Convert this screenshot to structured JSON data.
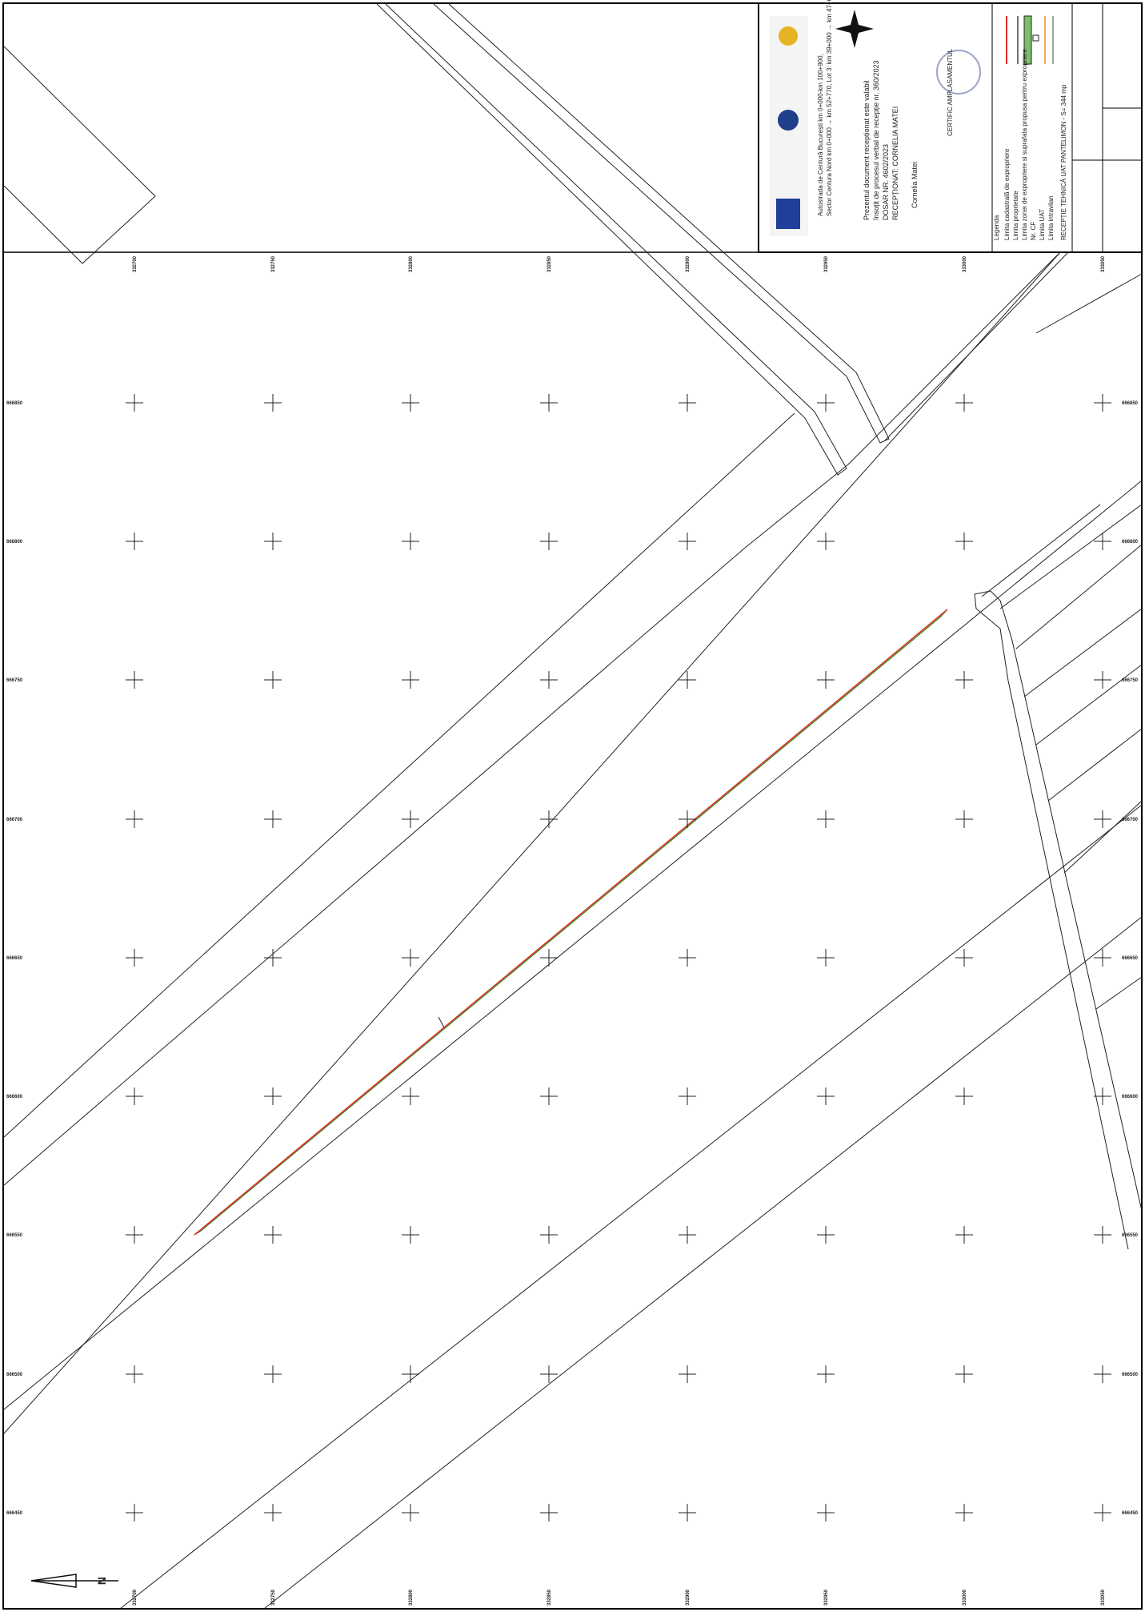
{
  "title_block": {
    "project": [
      "Autostrada de Centură București km 0+000-km 100+900,",
      "Sector Centura Nord km 0+000 → km 52+770, Lot 3: km 39+000 → km 47+600"
    ],
    "reception": [
      "Prezentul document recepționat este valabil",
      "însoțit de procesul verbal de recepție nr. 360/2023",
      "DOSAR NR. 4602/2023",
      "RECEPȚIONAT: CORNELIA MATEI"
    ],
    "signature": "Cornelia Matei",
    "stamp": "CERTIFIC AMPLASAMENTUL",
    "plan_title": "RECEPȚIE TEHNICĂ UAT PANTELIMON - S= 344 mp"
  },
  "legend": {
    "title": "Legenda",
    "items": [
      "Limita cadastrală de expropriere",
      "Limita proprietate",
      "Limita zonei de expropriere si suprafata propusa pentru expropriere",
      "Nr. CF",
      "Limita UAT",
      "Limita intravilan"
    ]
  },
  "grid": {
    "x_labels": [
      "332700",
      "332750",
      "332800",
      "332850",
      "332900",
      "332950",
      "333000",
      "333050"
    ],
    "y_labels": [
      "666850",
      "666800",
      "666750",
      "666700",
      "666650",
      "666600",
      "666550",
      "666500",
      "666450"
    ]
  },
  "north": "N"
}
